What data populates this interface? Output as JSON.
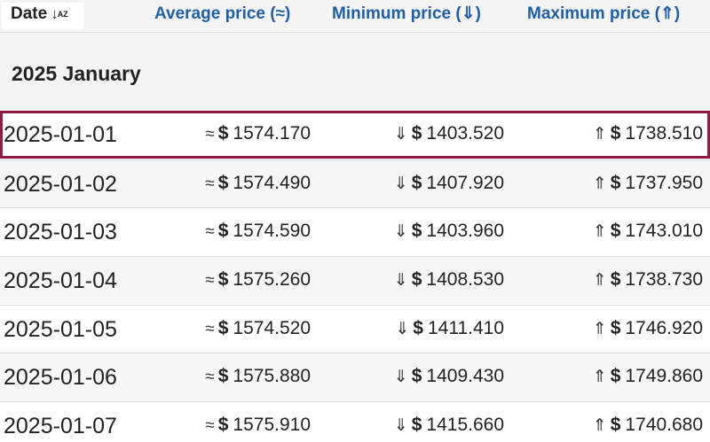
{
  "header": {
    "date_label": "Date",
    "sort_icon": "↓",
    "sort_icon_sub": "AZ",
    "avg_label": "Average price (≈)",
    "min_label": "Minimum price (⇓)",
    "max_label": "Maximum price (⇑)"
  },
  "group_title": "2025 January",
  "symbols": {
    "avg": "≈",
    "min": "⇓",
    "max": "⇑",
    "currency": "$"
  },
  "colors": {
    "link": "#1f5fa6",
    "highlight_border": "#8c1c42"
  },
  "rows": [
    {
      "date": "2025-01-01",
      "avg": "1574.170",
      "min": "1403.520",
      "max": "1738.510"
    },
    {
      "date": "2025-01-02",
      "avg": "1574.490",
      "min": "1407.920",
      "max": "1737.950"
    },
    {
      "date": "2025-01-03",
      "avg": "1574.590",
      "min": "1403.960",
      "max": "1743.010"
    },
    {
      "date": "2025-01-04",
      "avg": "1575.260",
      "min": "1408.530",
      "max": "1738.730"
    },
    {
      "date": "2025-01-05",
      "avg": "1574.520",
      "min": "1411.410",
      "max": "1746.920"
    },
    {
      "date": "2025-01-06",
      "avg": "1575.880",
      "min": "1409.430",
      "max": "1749.860"
    },
    {
      "date": "2025-01-07",
      "avg": "1575.910",
      "min": "1415.660",
      "max": "1740.680"
    }
  ]
}
